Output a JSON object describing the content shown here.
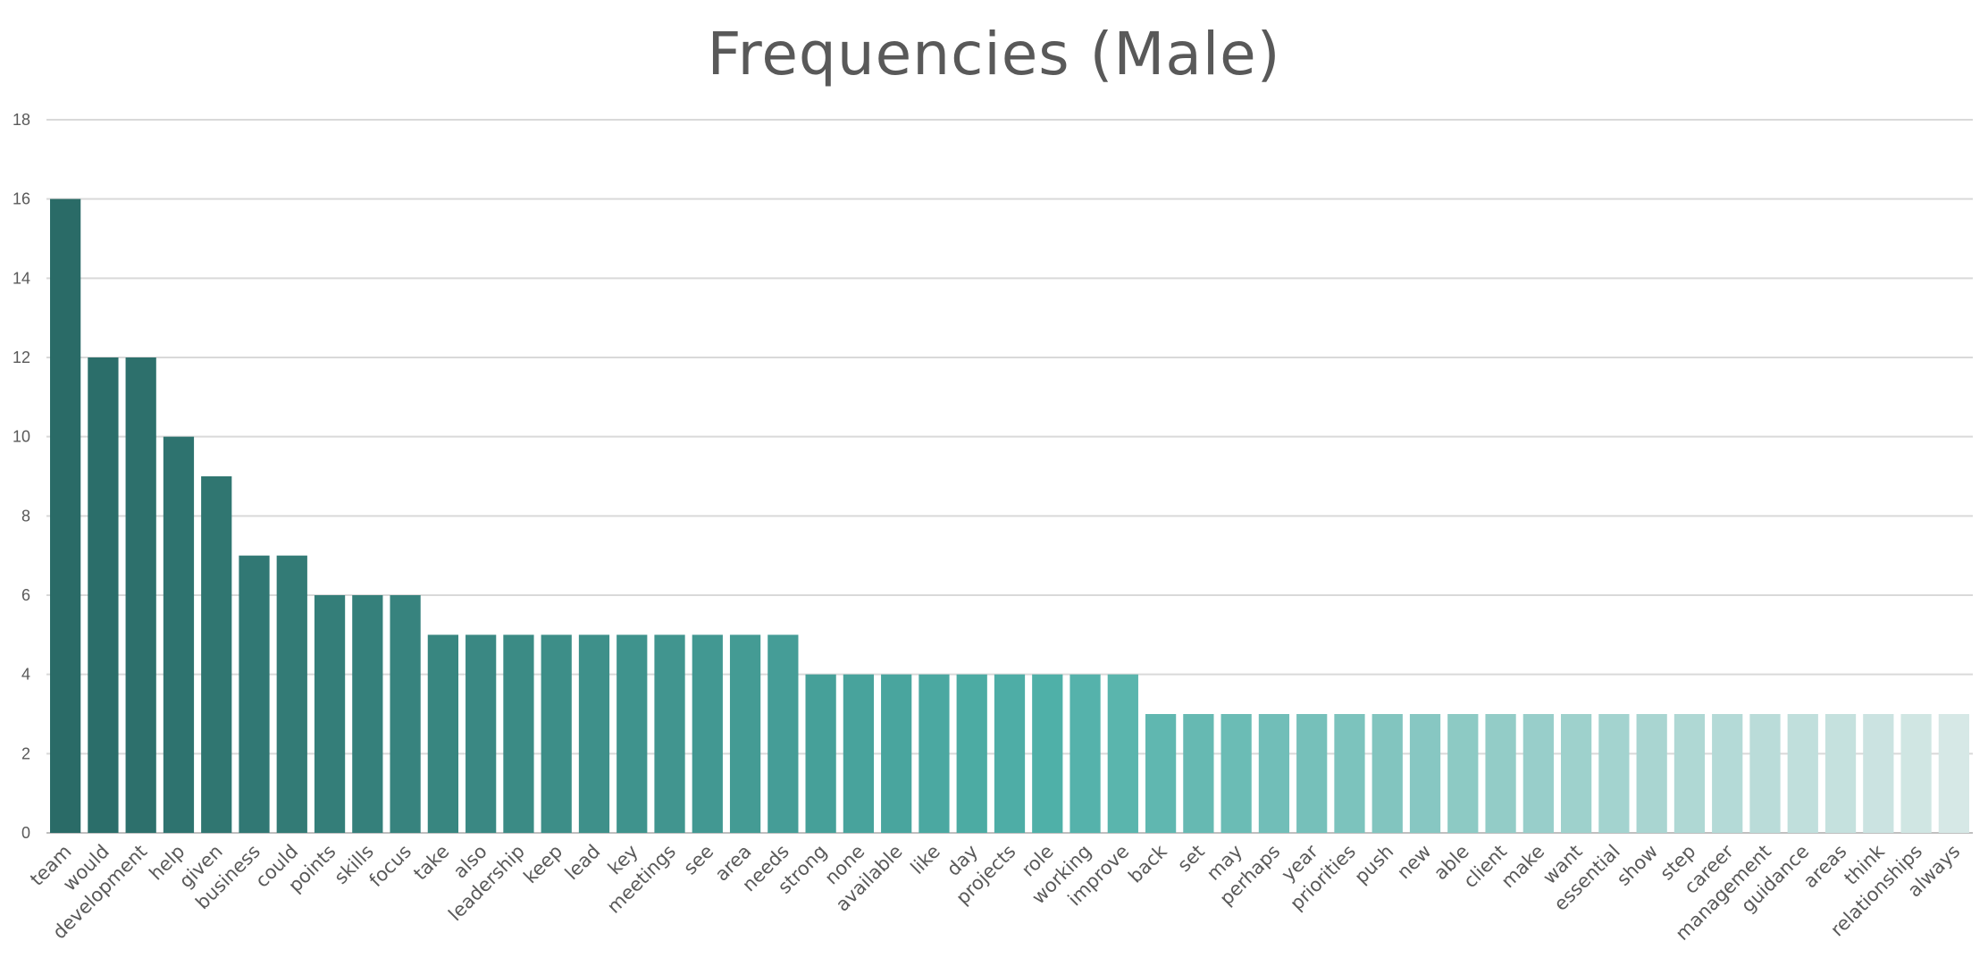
{
  "chart_data": {
    "type": "bar",
    "title": "Frequencies (Male)",
    "xlabel": "",
    "ylabel": "",
    "ylim": [
      0,
      18
    ],
    "yticks": [
      0,
      2,
      4,
      6,
      8,
      10,
      12,
      14,
      16,
      18
    ],
    "grid": true,
    "legend": "none",
    "categories": [
      "team",
      "would",
      "development",
      "help",
      "given",
      "business",
      "could",
      "points",
      "skills",
      "focus",
      "take",
      "also",
      "leadership",
      "keep",
      "lead",
      "key",
      "meetings",
      "see",
      "area",
      "needs",
      "strong",
      "none",
      "available",
      "like",
      "day",
      "projects",
      "role",
      "working",
      "improve",
      "back",
      "set",
      "may",
      "perhaps",
      "year",
      "priorities",
      "push",
      "new",
      "able",
      "client",
      "make",
      "want",
      "essential",
      "show",
      "step",
      "career",
      "management",
      "guidance",
      "areas",
      "think",
      "relationships",
      "always"
    ],
    "values": [
      16,
      12,
      12,
      10,
      9,
      7,
      7,
      6,
      6,
      6,
      5,
      5,
      5,
      5,
      5,
      5,
      5,
      5,
      5,
      5,
      4,
      4,
      4,
      4,
      4,
      4,
      4,
      4,
      4,
      3,
      3,
      3,
      3,
      3,
      3,
      3,
      3,
      3,
      3,
      3,
      3,
      3,
      3,
      3,
      3,
      3,
      3,
      3,
      3,
      3,
      3
    ],
    "colors": {
      "dark": "#2a6b67",
      "mid": "#4fb0a8",
      "light": "#d6e8e6",
      "gridline": "#d9d9d9",
      "text": "#595959"
    }
  }
}
